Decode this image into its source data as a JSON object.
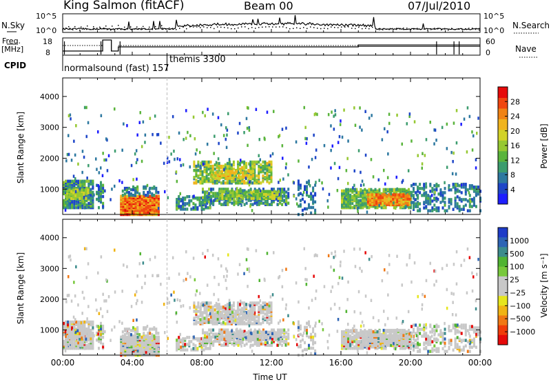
{
  "header": {
    "station": "King Salmon (fitACF)",
    "beam": "Beam 00",
    "date": "07/Jul/2010"
  },
  "chart_data": [
    {
      "type": "line",
      "panel": "noise",
      "labels": {
        "left": "N.Sky",
        "right": "N.Search"
      },
      "left_ticks": [
        "10^5",
        "10^0"
      ],
      "right_ticks": [
        "10^5",
        "10^0"
      ],
      "x_range_hours": [
        0,
        24
      ]
    },
    {
      "type": "line",
      "panel": "frequency",
      "labels": {
        "left_top": "Freq.",
        "left_bottom": "[MHz]",
        "right": "Nave"
      },
      "left_ticks": [
        18,
        8
      ],
      "right_ticks": [
        60,
        0
      ],
      "x_range_hours": [
        0,
        24
      ]
    },
    {
      "type": "table",
      "panel": "cpid",
      "label": "CPID",
      "modes": [
        {
          "name": "normalsound (fast) 157",
          "start_hour": 0.0
        },
        {
          "name": "themis 3300",
          "start_hour": 6.0
        }
      ]
    },
    {
      "type": "heatmap",
      "panel": "power",
      "ylabel": "Slant Range [km]",
      "yticks": [
        1000,
        2000,
        3000,
        4000
      ],
      "ylim": [
        180,
        4600
      ],
      "x_range_hours": [
        0,
        24
      ],
      "colorbar": {
        "label": "Power [dB]",
        "ticks": [
          4,
          8,
          12,
          16,
          20,
          24,
          28
        ],
        "range": [
          0,
          32
        ],
        "colors": [
          "#1e1eff",
          "#1e46c8",
          "#2d78a0",
          "#3c9c6e",
          "#5ab43c",
          "#96c832",
          "#d2d228",
          "#f0b41e",
          "#f08214",
          "#f0460f",
          "#e60a0a"
        ]
      }
    },
    {
      "type": "heatmap",
      "panel": "velocity",
      "ylabel": "Slant Range [km]",
      "yticks": [
        1000,
        2000,
        3000,
        4000
      ],
      "ylim": [
        180,
        4600
      ],
      "x_range_hours": [
        0,
        24
      ],
      "colorbar": {
        "label": "Velocity [m s⁻¹]",
        "ticks": [
          "1000",
          "500",
          "100",
          "25",
          "−25",
          "−100",
          "−500",
          "−1000"
        ],
        "colors": [
          "#1e3cc8",
          "#2d64b4",
          "#3c8c8c",
          "#50b432",
          "#78c83c",
          "#c8c8c8",
          "#c8c8c8",
          "#e6e61e",
          "#f0b414",
          "#f07814",
          "#f03c0a",
          "#e60a0a"
        ]
      }
    }
  ],
  "x_axis": {
    "ticks": [
      "00:00",
      "04:00",
      "08:00",
      "12:00",
      "16:00",
      "20:00",
      "00:00"
    ],
    "label": "Time UT"
  }
}
